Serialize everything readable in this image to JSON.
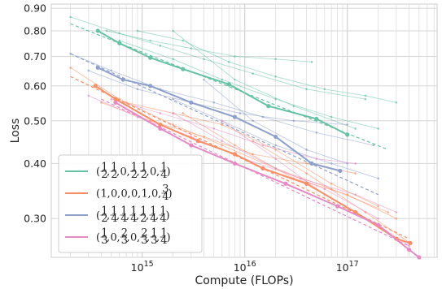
{
  "chart_data": {
    "type": "line",
    "xlabel": "Compute (FLOPs)",
    "ylabel": "Loss",
    "xscale": "log",
    "yscale": "log",
    "xlim": [
      130000000000000.0,
      7.5e+17
    ],
    "ylim": [
      0.245,
      0.92
    ],
    "xticks": [
      {
        "value": 1000000000000000.0,
        "base": "10",
        "exp": "15"
      },
      {
        "value": 1e+16,
        "base": "10",
        "exp": "16"
      },
      {
        "value": 1e+17,
        "base": "10",
        "exp": "17"
      }
    ],
    "yticks": [
      {
        "value": 0.9,
        "label": "0.90"
      },
      {
        "value": 0.8,
        "label": "0.80"
      },
      {
        "value": 0.7,
        "label": "0.70"
      },
      {
        "value": 0.6,
        "label": "0.60"
      },
      {
        "value": 0.5,
        "label": "0.50"
      },
      {
        "value": 0.4,
        "label": "0.40"
      },
      {
        "value": 0.3,
        "label": "0.30"
      }
    ],
    "grid": true,
    "legend_position": "bottom-left",
    "series": [
      {
        "name": "(1/2, 1/2, 0, 1/2, 1/2, 0, 1/4)",
        "legend_math": [
          {
            "n": "1",
            "d": "2"
          },
          {
            "n": "1",
            "d": "2"
          },
          "0",
          {
            "n": "1",
            "d": "2"
          },
          {
            "n": "1",
            "d": "2"
          },
          "0",
          {
            "n": "1",
            "d": "4"
          }
        ],
        "color": "#66c2a5",
        "frontier": [
          [
            370000000000000.0,
            0.8
          ],
          [
            600000000000000.0,
            0.75
          ],
          [
            1200000000000000.0,
            0.695
          ],
          [
            2500000000000000.0,
            0.655
          ],
          [
            7000000000000000.0,
            0.605
          ],
          [
            1.7e+16,
            0.54
          ],
          [
            5e+16,
            0.505
          ],
          [
            1e+17,
            0.465
          ]
        ],
        "fit": [
          [
            200000000000000.0,
            0.83
          ],
          [
            2.5e+17,
            0.43
          ]
        ],
        "runs": [
          [
            [
              200000000000000.0,
              0.86
            ],
            [
              600000000000000.0,
              0.79
            ],
            [
              1500000000000000.0,
              0.74
            ],
            [
              4000000000000000.0,
              0.69
            ],
            [
              1.2e+16,
              0.64
            ],
            [
              4e+16,
              0.59
            ],
            [
              1.5e+17,
              0.56
            ]
          ],
          [
            [
              450000000000000.0,
              0.8
            ],
            [
              1200000000000000.0,
              0.76
            ],
            [
              3000000000000000.0,
              0.73
            ],
            [
              8000000000000000.0,
              0.7
            ],
            [
              2e+16,
              0.69
            ],
            [
              4.5e+16,
              0.68
            ]
          ],
          [
            [
              900000000000000.0,
              0.8
            ],
            [
              2500000000000000.0,
              0.76
            ],
            [
              7000000000000000.0,
              0.68
            ],
            [
              2e+16,
              0.63
            ],
            [
              6e+16,
              0.59
            ],
            [
              1.5e+17,
              0.57
            ],
            [
              3e+17,
              0.55
            ]
          ],
          [
            [
              600000000000000.0,
              0.76
            ],
            [
              2000000000000000.0,
              0.69
            ],
            [
              6000000000000000.0,
              0.62
            ],
            [
              2e+16,
              0.56
            ],
            [
              7e+16,
              0.51
            ],
            [
              2e+17,
              0.48
            ]
          ],
          [
            [
              2000000000000000.0,
              0.8
            ],
            [
              8000000000000000.0,
              0.62
            ],
            [
              3e+16,
              0.54
            ],
            [
              1.2e+17,
              0.48
            ]
          ]
        ]
      },
      {
        "name": "(1, 0, 0, 0, 1, 0, 3/4)",
        "legend_math": [
          "1",
          "0",
          "0",
          "0",
          "1",
          "0",
          {
            "n": "3",
            "d": "4"
          }
        ],
        "color": "#fc8d62",
        "frontier": [
          [
            350000000000000.0,
            0.6
          ],
          [
            550000000000000.0,
            0.56
          ],
          [
            1500000000000000.0,
            0.49
          ],
          [
            3500000000000000.0,
            0.45
          ],
          [
            8000000000000000.0,
            0.42
          ],
          [
            1.5e+16,
            0.39
          ],
          [
            4e+16,
            0.36
          ],
          [
            1.2e+17,
            0.31
          ],
          [
            3e+17,
            0.27
          ],
          [
            4.1e+17,
            0.264
          ]
        ],
        "fit": [
          [
            200000000000000.0,
            0.63
          ],
          [
            4e+17,
            0.27
          ]
        ],
        "runs": [
          [
            [
              200000000000000.0,
              0.66
            ],
            [
              600000000000000.0,
              0.56
            ],
            [
              2000000000000000.0,
              0.49
            ],
            [
              6000000000000000.0,
              0.44
            ],
            [
              2e+16,
              0.39
            ],
            [
              7e+16,
              0.35
            ],
            [
              2.5e+17,
              0.31
            ]
          ],
          [
            [
              400000000000000.0,
              0.55
            ],
            [
              1200000000000000.0,
              0.5
            ],
            [
              4000000000000000.0,
              0.46
            ],
            [
              1.2e+16,
              0.42
            ],
            [
              4e+16,
              0.4
            ],
            [
              1.2e+17,
              0.38
            ]
          ],
          [
            [
              700000000000000.0,
              0.55
            ],
            [
              2000000000000000.0,
              0.52
            ],
            [
              6000000000000000.0,
              0.49
            ],
            [
              2e+16,
              0.43
            ],
            [
              7e+16,
              0.36
            ],
            [
              2e+17,
              0.32
            ]
          ],
          [
            [
              2500000000000000.0,
              0.52
            ],
            [
              8000000000000000.0,
              0.44
            ],
            [
              3e+16,
              0.37
            ],
            [
              1e+17,
              0.34
            ],
            [
              3e+17,
              0.3
            ]
          ],
          [
            [
              1.2e+16,
              0.45
            ],
            [
              4e+16,
              0.38
            ],
            [
              1.5e+17,
              0.31
            ],
            [
              4.1e+17,
              0.264
            ]
          ]
        ]
      },
      {
        "name": "(1/2, 1/4, 1/4, 1/4, 1/2, 1/4, 1/4)",
        "legend_math": [
          {
            "n": "1",
            "d": "2"
          },
          {
            "n": "1",
            "d": "4"
          },
          {
            "n": "1",
            "d": "4"
          },
          {
            "n": "1",
            "d": "4"
          },
          {
            "n": "1",
            "d": "2"
          },
          {
            "n": "1",
            "d": "4"
          },
          {
            "n": "1",
            "d": "4"
          }
        ],
        "color": "#8da0cb",
        "frontier": [
          [
            370000000000000.0,
            0.66
          ],
          [
            650000000000000.0,
            0.62
          ],
          [
            1200000000000000.0,
            0.6
          ],
          [
            3000000000000000.0,
            0.55
          ],
          [
            8000000000000000.0,
            0.51
          ],
          [
            2e+16,
            0.46
          ],
          [
            4.5e+16,
            0.4
          ],
          [
            8.5e+16,
            0.385
          ]
        ],
        "fit": [
          [
            200000000000000.0,
            0.71
          ],
          [
            2e+17,
            0.34
          ]
        ],
        "runs": [
          [
            [
              200000000000000.0,
              0.71
            ],
            [
              500000000000000.0,
              0.65
            ],
            [
              1500000000000000.0,
              0.59
            ],
            [
              5000000000000000.0,
              0.55
            ],
            [
              1.5e+16,
              0.51
            ],
            [
              5e+16,
              0.47
            ],
            [
              1.8e+17,
              0.44
            ]
          ],
          [
            [
              300000000000000.0,
              0.65
            ],
            [
              900000000000000.0,
              0.59
            ],
            [
              3000000000000000.0,
              0.55
            ],
            [
              9000000000000000.0,
              0.52
            ],
            [
              3e+16,
              0.5
            ],
            [
              1e+17,
              0.49
            ]
          ],
          [
            [
              4000000000000000.0,
              0.62
            ],
            [
              1.2e+16,
              0.5
            ],
            [
              4e+16,
              0.43
            ],
            [
              1e+17,
              0.4
            ]
          ],
          [
            [
              2000000000000000.0,
              0.56
            ],
            [
              6000000000000000.0,
              0.5
            ],
            [
              2e+16,
              0.44
            ],
            [
              7e+16,
              0.4
            ],
            [
              2e+17,
              0.37
            ]
          ]
        ]
      },
      {
        "name": "(1/3, 0, 2/3, 0, 2/3, 1/3, 1/4)",
        "legend_math": [
          {
            "n": "1",
            "d": "3"
          },
          "0",
          {
            "n": "2",
            "d": "3"
          },
          "0",
          {
            "n": "2",
            "d": "3"
          },
          {
            "n": "1",
            "d": "3"
          },
          {
            "n": "1",
            "d": "4"
          }
        ],
        "color": "#e78ac3",
        "frontier": [
          [
            550000000000000.0,
            0.55
          ],
          [
            1500000000000000.0,
            0.48
          ],
          [
            3000000000000000.0,
            0.44
          ],
          [
            8000000000000000.0,
            0.4
          ],
          [
            2.5e+16,
            0.36
          ],
          [
            8e+16,
            0.32
          ],
          [
            2e+17,
            0.29
          ],
          [
            4e+17,
            0.255
          ],
          [
            5e+17,
            0.245
          ]
        ],
        "fit": [
          [
            400000000000000.0,
            0.56
          ],
          [
            4e+17,
            0.26
          ]
        ],
        "runs": [
          [
            [
              300000000000000.0,
              0.57
            ],
            [
              900000000000000.0,
              0.51
            ],
            [
              3000000000000000.0,
              0.46
            ],
            [
              1e+16,
              0.41
            ],
            [
              3.5e+16,
              0.37
            ],
            [
              1.2e+17,
              0.34
            ],
            [
              3e+17,
              0.31
            ]
          ],
          [
            [
              500000000000000.0,
              0.56
            ],
            [
              1500000000000000.0,
              0.52
            ],
            [
              5000000000000000.0,
              0.48
            ],
            [
              1.5e+16,
              0.44
            ],
            [
              5e+16,
              0.41
            ],
            [
              1.2e+17,
              0.4
            ]
          ],
          [
            [
              2000000000000000.0,
              0.52
            ],
            [
              6000000000000000.0,
              0.45
            ],
            [
              2e+16,
              0.39
            ],
            [
              6e+16,
              0.35
            ],
            [
              2e+17,
              0.3
            ]
          ],
          [
            [
              6000000000000000.0,
              0.5
            ],
            [
              2e+16,
              0.41
            ],
            [
              6e+16,
              0.34
            ],
            [
              2e+17,
              0.29
            ],
            [
              4e+17,
              0.26
            ]
          ]
        ]
      }
    ]
  }
}
